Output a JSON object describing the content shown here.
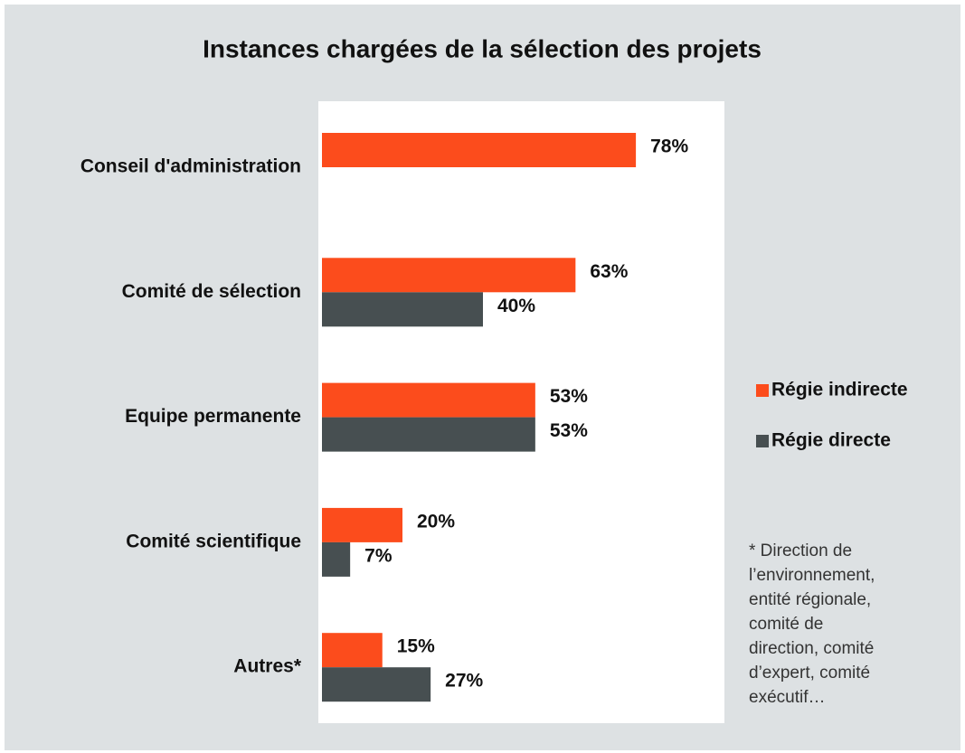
{
  "chart_data": {
    "type": "hbar",
    "title": "Instances chargées de la sélection des projets",
    "categories": [
      "Conseil d'administration",
      "Comité de sélection",
      "Equipe permanente",
      "Comité scientifique",
      "Autres*"
    ],
    "series": [
      {
        "name": "Régie indirecte",
        "color": "#fc4c1c",
        "values": [
          78,
          63,
          53,
          20,
          15
        ],
        "value_labels": [
          "78%",
          "63%",
          "53%",
          "20%",
          "15%"
        ]
      },
      {
        "name": "Régie directe",
        "color": "#474f51",
        "values": [
          null,
          40,
          53,
          7,
          27
        ],
        "value_labels": [
          null,
          "40%",
          "53%",
          "7%",
          "27%"
        ]
      }
    ],
    "xlim": [
      0,
      100
    ],
    "legend": "right",
    "footnote": [
      "*  Direction de",
      "l’environnement,",
      "entité régionale,",
      "comité de",
      "direction, comité",
      "d’expert, comité",
      "exécutif…"
    ]
  }
}
